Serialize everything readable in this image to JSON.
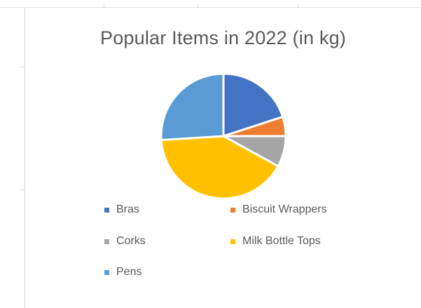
{
  "chart_data": {
    "type": "pie",
    "title": "Popular Items in 2022 (in kg)",
    "categories": [
      "Bras",
      "Biscuit Wrappers",
      "Corks",
      "Milk Bottle Tops",
      "Pens"
    ],
    "values": [
      20,
      5,
      8,
      41,
      26
    ],
    "colors": [
      "#4472C4",
      "#ED7D31",
      "#A5A5A5",
      "#FFC000",
      "#5B9BD5"
    ],
    "legend_position": "bottom",
    "grid": false
  }
}
